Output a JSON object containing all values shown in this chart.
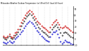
{
  "title": "Milwaukee Weather Outdoor Temperature (vs) Wind Chill (Last 24 Hours)",
  "bg_color": "#ffffff",
  "grid_color": "#888888",
  "temp_color": "#cc0000",
  "windchill_color": "#0000cc",
  "black_color": "#000000",
  "ylim": [
    -5,
    55
  ],
  "ytick_labels": [
    "50",
    "40",
    "30",
    "20",
    "10",
    "0",
    "-10"
  ],
  "ytick_vals": [
    50,
    40,
    30,
    20,
    10,
    0,
    -10
  ],
  "n_points": 48,
  "temp_data": [
    5,
    3,
    2,
    5,
    8,
    4,
    3,
    6,
    10,
    12,
    16,
    22,
    28,
    32,
    36,
    40,
    44,
    46,
    48,
    46,
    42,
    38,
    35,
    30,
    28,
    25,
    22,
    20,
    18,
    16,
    14,
    12,
    20,
    24,
    28,
    30,
    32,
    28,
    24,
    20,
    18,
    20,
    22,
    20,
    18,
    16,
    14,
    12
  ],
  "windchill_data": [
    -5,
    -7,
    -8,
    -5,
    -3,
    -6,
    -7,
    -4,
    0,
    2,
    5,
    8,
    12,
    14,
    18,
    22,
    25,
    28,
    30,
    28,
    25,
    22,
    18,
    14,
    12,
    8,
    5,
    2,
    0,
    -2,
    -3,
    -4,
    4,
    8,
    12,
    12,
    14,
    8,
    2,
    -4,
    -8,
    -5,
    -2,
    -4,
    -5,
    -6,
    -8,
    -9
  ],
  "black_data": [
    2,
    0,
    -1,
    2,
    5,
    1,
    0,
    3,
    6,
    8,
    12,
    16,
    22,
    26,
    30,
    34,
    38,
    40,
    42,
    40,
    36,
    32,
    28,
    24,
    20,
    17,
    14,
    12,
    10,
    8,
    6,
    4,
    12,
    16,
    20,
    22,
    24,
    20,
    16,
    10,
    6,
    10,
    12,
    10,
    8,
    6,
    4,
    2
  ],
  "vgrid_interval": 4
}
